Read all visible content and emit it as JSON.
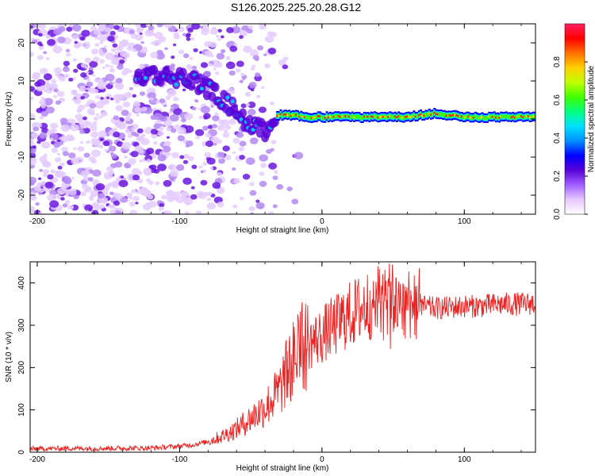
{
  "chart_data": [
    {
      "type": "heatmap",
      "title": "S126.2025.225.20.28.G12",
      "xlabel": "Height of straight line (km)",
      "ylabel": "Frequency (Hz)",
      "xlim": [
        -205,
        150
      ],
      "ylim": [
        -25,
        25
      ],
      "xticks": [
        -200,
        -100,
        0,
        100
      ],
      "yticks": [
        20,
        10,
        0,
        -10,
        -20
      ],
      "colorbar": {
        "label": "Normalized spectral amplitude",
        "range": [
          0,
          1
        ],
        "ticks": [
          0.0,
          0.2,
          0.4,
          0.6,
          0.8
        ],
        "colors": [
          "#ffffff",
          "#e6c8ff",
          "#a060ff",
          "#5a00d8",
          "#0000ff",
          "#0090ff",
          "#00e0ff",
          "#00ff80",
          "#40ff00",
          "#c0ff00",
          "#ffd000",
          "#ff7000",
          "#ff0000",
          "#ff2060"
        ]
      },
      "ridge": {
        "x": [
          -130,
          -120,
          -110,
          -100,
          -90,
          -80,
          -70,
          -60,
          -50,
          -40,
          -32,
          -20,
          -10,
          0,
          20,
          40,
          60,
          80,
          100,
          120,
          150
        ],
        "y": [
          11,
          12,
          11,
          11,
          10,
          8,
          5,
          2,
          -2,
          -3,
          1,
          1,
          0.5,
          0.5,
          0.5,
          0.5,
          0.5,
          1.5,
          0.5,
          0.5,
          0.5
        ]
      }
    },
    {
      "type": "line",
      "title": "",
      "xlabel": "Height of straight line (km)",
      "ylabel": "SNR (10 * v/v)",
      "xlim": [
        -205,
        150
      ],
      "ylim": [
        0,
        450
      ],
      "xticks": [
        -200,
        -100,
        0,
        100
      ],
      "yticks": [
        0,
        100,
        200,
        300,
        400
      ],
      "series": [
        {
          "name": "SNR",
          "color": "#ee2020",
          "x": [
            -205,
            -180,
            -150,
            -120,
            -100,
            -90,
            -80,
            -70,
            -60,
            -50,
            -40,
            -30,
            -25,
            -20,
            -15,
            -10,
            -5,
            0,
            5,
            10,
            15,
            20,
            25,
            30,
            35,
            40,
            45,
            50,
            55,
            60,
            65,
            70,
            80,
            90,
            100,
            110,
            120,
            130,
            140,
            150
          ],
          "values": [
            8,
            9,
            9,
            10,
            14,
            18,
            25,
            38,
            55,
            80,
            105,
            145,
            185,
            220,
            245,
            255,
            265,
            275,
            290,
            300,
            315,
            325,
            335,
            345,
            352,
            360,
            355,
            358,
            352,
            355,
            360,
            345,
            340,
            342,
            345,
            345,
            348,
            350,
            350,
            352
          ]
        }
      ]
    }
  ]
}
